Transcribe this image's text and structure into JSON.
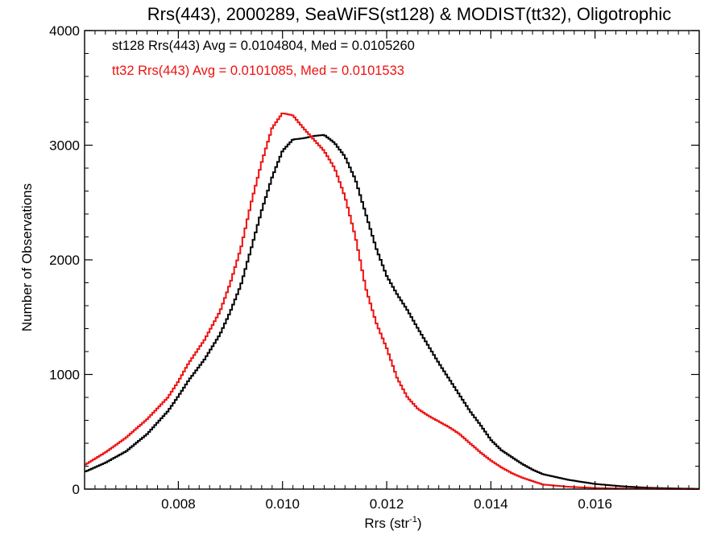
{
  "colors": {
    "st128": "#000000",
    "tt32": "#ee1111",
    "axes": "#000000",
    "background": "#ffffff"
  },
  "chart_data": {
    "type": "line",
    "style": "step-histogram",
    "title": "Rrs(443), 2000289, SeaWiFS(st128) & MODIST(tt32), Oligotrophic",
    "xlabel_base": "Rrs (str",
    "xlabel_sup": "-1",
    "xlabel_tail": ")",
    "ylabel": "Number of Observations",
    "xlim": [
      0.0062,
      0.018
    ],
    "ylim": [
      0,
      4000
    ],
    "xticks": [
      0.008,
      0.01,
      0.012,
      0.014,
      0.016
    ],
    "xtick_labels": [
      "0.008",
      "0.010",
      "0.012",
      "0.014",
      "0.016"
    ],
    "yticks": [
      0,
      1000,
      2000,
      3000,
      4000
    ],
    "ytick_labels": [
      "0",
      "1000",
      "2000",
      "3000",
      "4000"
    ],
    "grid": false,
    "annotations": [
      {
        "text": "st128 Rrs(443) Avg = 0.0104804, Med = 0.0105260",
        "color": "#000000"
      },
      {
        "text": "tt32 Rrs(443) Avg = 0.0101085, Med = 0.0101533",
        "color": "#ee1111"
      }
    ],
    "series": [
      {
        "id": "st128",
        "color": "#000000",
        "x": [
          0.0062,
          0.0066,
          0.007,
          0.0074,
          0.0078,
          0.008,
          0.0082,
          0.0085,
          0.0088,
          0.009,
          0.0092,
          0.0094,
          0.0096,
          0.0098,
          0.01,
          0.0102,
          0.0104,
          0.0106,
          0.0108,
          0.011,
          0.0112,
          0.0114,
          0.0116,
          0.0118,
          0.012,
          0.0122,
          0.0124,
          0.0126,
          0.0128,
          0.013,
          0.0132,
          0.0134,
          0.0136,
          0.0138,
          0.014,
          0.0142,
          0.0144,
          0.0146,
          0.0148,
          0.015,
          0.0155,
          0.016,
          0.0165,
          0.017,
          0.0175,
          0.018
        ],
        "y": [
          150,
          230,
          330,
          480,
          680,
          810,
          950,
          1130,
          1350,
          1550,
          1780,
          2100,
          2430,
          2720,
          2950,
          3050,
          3060,
          3080,
          3090,
          3020,
          2900,
          2700,
          2400,
          2100,
          1860,
          1700,
          1560,
          1400,
          1250,
          1100,
          960,
          820,
          680,
          560,
          430,
          340,
          280,
          220,
          170,
          130,
          80,
          45,
          25,
          12,
          6,
          2
        ]
      },
      {
        "id": "tt32",
        "color": "#ee1111",
        "x": [
          0.0062,
          0.0066,
          0.007,
          0.0074,
          0.0078,
          0.008,
          0.0082,
          0.0085,
          0.0088,
          0.009,
          0.0092,
          0.0094,
          0.0096,
          0.0098,
          0.01,
          0.0102,
          0.0104,
          0.0106,
          0.0108,
          0.011,
          0.0112,
          0.0114,
          0.0116,
          0.0118,
          0.012,
          0.0122,
          0.0124,
          0.0126,
          0.0128,
          0.013,
          0.0132,
          0.0134,
          0.0136,
          0.0138,
          0.014,
          0.0142,
          0.0144,
          0.0146,
          0.0148,
          0.015,
          0.0155,
          0.016,
          0.0165,
          0.017,
          0.0175,
          0.018
        ],
        "y": [
          210,
          320,
          450,
          610,
          800,
          940,
          1100,
          1300,
          1550,
          1800,
          2100,
          2500,
          2850,
          3150,
          3280,
          3260,
          3150,
          3050,
          2950,
          2800,
          2550,
          2200,
          1750,
          1450,
          1230,
          970,
          800,
          700,
          640,
          590,
          540,
          480,
          400,
          320,
          250,
          190,
          140,
          100,
          70,
          40,
          20,
          10,
          5,
          3,
          1,
          0
        ]
      }
    ]
  }
}
